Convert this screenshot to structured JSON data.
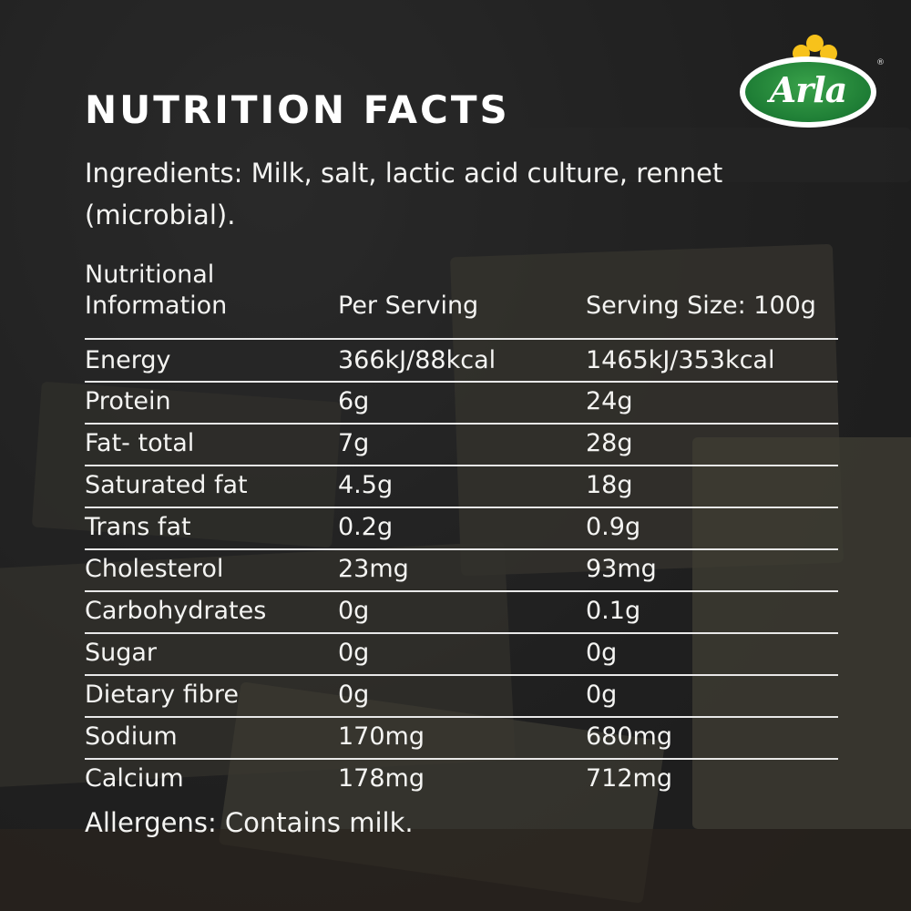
{
  "brand": {
    "name": "Arla",
    "registered": "®",
    "colors": {
      "oval": "#1e7d35",
      "flower": "#f7c21b"
    }
  },
  "title": "NUTRITION FACTS",
  "ingredients": "Ingredients: Milk, salt, lactic acid culture, rennet (microbial).",
  "table": {
    "headers": [
      "Nutritional Information",
      "Per Serving",
      "Serving Size: 100g"
    ],
    "rows": [
      {
        "nutrient": "Energy",
        "per_serving": "366kJ/88kcal",
        "per_100g": "1465kJ/353kcal"
      },
      {
        "nutrient": "Protein",
        "per_serving": "6g",
        "per_100g": "24g"
      },
      {
        "nutrient": "Fat- total",
        "per_serving": "7g",
        "per_100g": "28g"
      },
      {
        "nutrient": "Saturated fat",
        "per_serving": "4.5g",
        "per_100g": "18g"
      },
      {
        "nutrient": "Trans fat",
        "per_serving": "0.2g",
        "per_100g": "0.9g"
      },
      {
        "nutrient": "Cholesterol",
        "per_serving": "23mg",
        "per_100g": "93mg"
      },
      {
        "nutrient": "Carbohydrates",
        "per_serving": "0g",
        "per_100g": "0.1g"
      },
      {
        "nutrient": "Sugar",
        "per_serving": "0g",
        "per_100g": "0g"
      },
      {
        "nutrient": "Dietary fibre",
        "per_serving": "0g",
        "per_100g": "0g"
      },
      {
        "nutrient": "Sodium",
        "per_serving": "170mg",
        "per_100g": "680mg"
      },
      {
        "nutrient": "Calcium",
        "per_serving": "178mg",
        "per_100g": "712mg"
      }
    ]
  },
  "allergens": "Allergens: Contains milk."
}
